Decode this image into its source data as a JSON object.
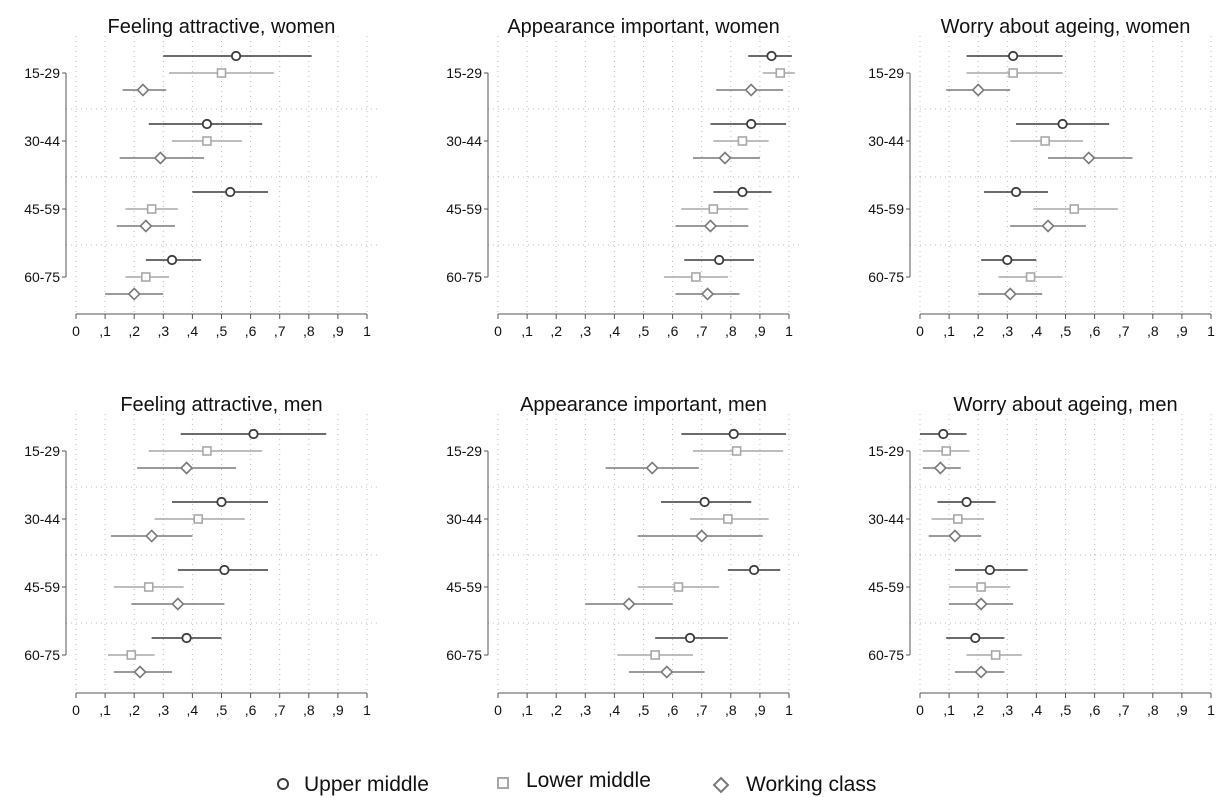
{
  "legend": {
    "upper": "Upper middle",
    "lower": "Lower middle",
    "working": "Working class"
  },
  "colors": {
    "upper": "#3c3c3c",
    "lower": "#a8a8a8",
    "working": "#7a7a7a",
    "axis": "#555555",
    "grid": "#bdbdbd"
  },
  "chart_data": [
    {
      "type": "dot-whisker",
      "title": "Feeling attractive, women",
      "categories": [
        "15-29",
        "30-44",
        "45-59",
        "60-75"
      ],
      "xlim": [
        0,
        1
      ],
      "xticks": [
        "0",
        ",1",
        ",2",
        ",3",
        ",4",
        ",5",
        ",6",
        ",7",
        ",8",
        ",9",
        "1"
      ],
      "series": [
        {
          "name": "Upper middle",
          "points": [
            {
              "est": 0.55,
              "lo": 0.3,
              "hi": 0.81
            },
            {
              "est": 0.45,
              "lo": 0.25,
              "hi": 0.64
            },
            {
              "est": 0.53,
              "lo": 0.4,
              "hi": 0.66
            },
            {
              "est": 0.33,
              "lo": 0.24,
              "hi": 0.43
            }
          ]
        },
        {
          "name": "Lower middle",
          "points": [
            {
              "est": 0.5,
              "lo": 0.32,
              "hi": 0.68
            },
            {
              "est": 0.45,
              "lo": 0.33,
              "hi": 0.57
            },
            {
              "est": 0.26,
              "lo": 0.17,
              "hi": 0.35
            },
            {
              "est": 0.24,
              "lo": 0.17,
              "hi": 0.32
            }
          ]
        },
        {
          "name": "Working class",
          "points": [
            {
              "est": 0.23,
              "lo": 0.16,
              "hi": 0.31
            },
            {
              "est": 0.29,
              "lo": 0.15,
              "hi": 0.44
            },
            {
              "est": 0.24,
              "lo": 0.14,
              "hi": 0.34
            },
            {
              "est": 0.2,
              "lo": 0.1,
              "hi": 0.3
            }
          ]
        }
      ]
    },
    {
      "type": "dot-whisker",
      "title": "Appearance important, women",
      "categories": [
        "15-29",
        "30-44",
        "45-59",
        "60-75"
      ],
      "xlim": [
        0,
        1
      ],
      "xticks": [
        "0",
        ",1",
        ",2",
        ",3",
        ",4",
        ",5",
        ",6",
        ",7",
        ",8",
        ",9",
        "1"
      ],
      "series": [
        {
          "name": "Upper middle",
          "points": [
            {
              "est": 0.94,
              "lo": 0.86,
              "hi": 1.01
            },
            {
              "est": 0.87,
              "lo": 0.73,
              "hi": 0.99
            },
            {
              "est": 0.84,
              "lo": 0.74,
              "hi": 0.94
            },
            {
              "est": 0.76,
              "lo": 0.64,
              "hi": 0.88
            }
          ]
        },
        {
          "name": "Lower middle",
          "points": [
            {
              "est": 0.97,
              "lo": 0.91,
              "hi": 1.02
            },
            {
              "est": 0.84,
              "lo": 0.74,
              "hi": 0.93
            },
            {
              "est": 0.74,
              "lo": 0.63,
              "hi": 0.86
            },
            {
              "est": 0.68,
              "lo": 0.57,
              "hi": 0.79
            }
          ]
        },
        {
          "name": "Working class",
          "points": [
            {
              "est": 0.87,
              "lo": 0.75,
              "hi": 0.98
            },
            {
              "est": 0.78,
              "lo": 0.67,
              "hi": 0.9
            },
            {
              "est": 0.73,
              "lo": 0.61,
              "hi": 0.86
            },
            {
              "est": 0.72,
              "lo": 0.61,
              "hi": 0.83
            }
          ]
        }
      ]
    },
    {
      "type": "dot-whisker",
      "title": "Worry about ageing, women",
      "categories": [
        "15-29",
        "30-44",
        "45-59",
        "60-75"
      ],
      "xlim": [
        0,
        1
      ],
      "xticks": [
        "0",
        ",1",
        ",2",
        ",3",
        ",4",
        ",5",
        ",6",
        ",7",
        ",8",
        ",9",
        "1"
      ],
      "series": [
        {
          "name": "Upper middle",
          "points": [
            {
              "est": 0.32,
              "lo": 0.16,
              "hi": 0.49
            },
            {
              "est": 0.49,
              "lo": 0.33,
              "hi": 0.65
            },
            {
              "est": 0.33,
              "lo": 0.22,
              "hi": 0.44
            },
            {
              "est": 0.3,
              "lo": 0.21,
              "hi": 0.4
            }
          ]
        },
        {
          "name": "Lower middle",
          "points": [
            {
              "est": 0.32,
              "lo": 0.16,
              "hi": 0.49
            },
            {
              "est": 0.43,
              "lo": 0.31,
              "hi": 0.56
            },
            {
              "est": 0.53,
              "lo": 0.39,
              "hi": 0.68
            },
            {
              "est": 0.38,
              "lo": 0.27,
              "hi": 0.49
            }
          ]
        },
        {
          "name": "Working class",
          "points": [
            {
              "est": 0.2,
              "lo": 0.09,
              "hi": 0.31
            },
            {
              "est": 0.58,
              "lo": 0.44,
              "hi": 0.73
            },
            {
              "est": 0.44,
              "lo": 0.31,
              "hi": 0.57
            },
            {
              "est": 0.31,
              "lo": 0.2,
              "hi": 0.42
            }
          ]
        }
      ]
    },
    {
      "type": "dot-whisker",
      "title": "Feeling attractive, men",
      "categories": [
        "15-29",
        "30-44",
        "45-59",
        "60-75"
      ],
      "xlim": [
        0,
        1
      ],
      "xticks": [
        "0",
        ",1",
        ",2",
        ",3",
        ",4",
        ",5",
        ",6",
        ",7",
        ",8",
        ",9",
        "1"
      ],
      "series": [
        {
          "name": "Upper middle",
          "points": [
            {
              "est": 0.61,
              "lo": 0.36,
              "hi": 0.86
            },
            {
              "est": 0.5,
              "lo": 0.33,
              "hi": 0.66
            },
            {
              "est": 0.51,
              "lo": 0.35,
              "hi": 0.66
            },
            {
              "est": 0.38,
              "lo": 0.26,
              "hi": 0.5
            }
          ]
        },
        {
          "name": "Lower middle",
          "points": [
            {
              "est": 0.45,
              "lo": 0.25,
              "hi": 0.64
            },
            {
              "est": 0.42,
              "lo": 0.27,
              "hi": 0.58
            },
            {
              "est": 0.25,
              "lo": 0.13,
              "hi": 0.37
            },
            {
              "est": 0.19,
              "lo": 0.11,
              "hi": 0.27
            }
          ]
        },
        {
          "name": "Working class",
          "points": [
            {
              "est": 0.38,
              "lo": 0.21,
              "hi": 0.55
            },
            {
              "est": 0.26,
              "lo": 0.12,
              "hi": 0.4
            },
            {
              "est": 0.35,
              "lo": 0.19,
              "hi": 0.51
            },
            {
              "est": 0.22,
              "lo": 0.13,
              "hi": 0.33
            }
          ]
        }
      ]
    },
    {
      "type": "dot-whisker",
      "title": "Appearance important, men",
      "categories": [
        "15-29",
        "30-44",
        "45-59",
        "60-75"
      ],
      "xlim": [
        0,
        1
      ],
      "xticks": [
        "0",
        ",1",
        ",2",
        ",3",
        ",4",
        ",5",
        ",6",
        ",7",
        ",8",
        ",9",
        "1"
      ],
      "series": [
        {
          "name": "Upper middle",
          "points": [
            {
              "est": 0.81,
              "lo": 0.63,
              "hi": 0.99
            },
            {
              "est": 0.71,
              "lo": 0.56,
              "hi": 0.87
            },
            {
              "est": 0.88,
              "lo": 0.79,
              "hi": 0.97
            },
            {
              "est": 0.66,
              "lo": 0.54,
              "hi": 0.79
            }
          ]
        },
        {
          "name": "Lower middle",
          "points": [
            {
              "est": 0.82,
              "lo": 0.67,
              "hi": 0.98
            },
            {
              "est": 0.79,
              "lo": 0.66,
              "hi": 0.93
            },
            {
              "est": 0.62,
              "lo": 0.48,
              "hi": 0.76
            },
            {
              "est": 0.54,
              "lo": 0.41,
              "hi": 0.67
            }
          ]
        },
        {
          "name": "Working class",
          "points": [
            {
              "est": 0.53,
              "lo": 0.37,
              "hi": 0.69
            },
            {
              "est": 0.7,
              "lo": 0.48,
              "hi": 0.91
            },
            {
              "est": 0.45,
              "lo": 0.3,
              "hi": 0.6
            },
            {
              "est": 0.58,
              "lo": 0.45,
              "hi": 0.71
            }
          ]
        }
      ]
    },
    {
      "type": "dot-whisker",
      "title": "Worry about ageing, men",
      "categories": [
        "15-29",
        "30-44",
        "45-59",
        "60-75"
      ],
      "xlim": [
        0,
        1
      ],
      "xticks": [
        "0",
        ",1",
        ",2",
        ",3",
        ",4",
        ",5",
        ",6",
        ",7",
        ",8",
        ",9",
        "1"
      ],
      "series": [
        {
          "name": "Upper middle",
          "points": [
            {
              "est": 0.08,
              "lo": 0.0,
              "hi": 0.16
            },
            {
              "est": 0.16,
              "lo": 0.06,
              "hi": 0.26
            },
            {
              "est": 0.24,
              "lo": 0.12,
              "hi": 0.37
            },
            {
              "est": 0.19,
              "lo": 0.09,
              "hi": 0.29
            }
          ]
        },
        {
          "name": "Lower middle",
          "points": [
            {
              "est": 0.09,
              "lo": 0.01,
              "hi": 0.17
            },
            {
              "est": 0.13,
              "lo": 0.04,
              "hi": 0.22
            },
            {
              "est": 0.21,
              "lo": 0.1,
              "hi": 0.31
            },
            {
              "est": 0.26,
              "lo": 0.16,
              "hi": 0.35
            }
          ]
        },
        {
          "name": "Working class",
          "points": [
            {
              "est": 0.07,
              "lo": 0.01,
              "hi": 0.14
            },
            {
              "est": 0.12,
              "lo": 0.03,
              "hi": 0.21
            },
            {
              "est": 0.21,
              "lo": 0.1,
              "hi": 0.32
            },
            {
              "est": 0.21,
              "lo": 0.12,
              "hi": 0.29
            }
          ]
        }
      ]
    }
  ]
}
